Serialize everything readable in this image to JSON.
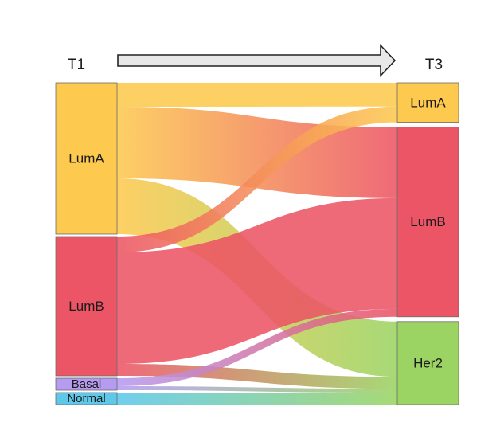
{
  "time_labels": {
    "left": "T1",
    "right": "T3"
  },
  "left_nodes": [
    {
      "id": "lumA",
      "label": "LumA",
      "value": 38,
      "color": "#fdc94f"
    },
    {
      "id": "lumB",
      "label": "LumB",
      "value": 35,
      "color": "#ec5565"
    },
    {
      "id": "basal",
      "label": "Basal",
      "value": 3,
      "color": "#b69cf0"
    },
    {
      "id": "normal",
      "label": "Normal",
      "value": 3,
      "color": "#5ec8ea"
    }
  ],
  "right_nodes": [
    {
      "id": "lumA",
      "label": "LumA",
      "value": 10,
      "color": "#fdc94f"
    },
    {
      "id": "lumB",
      "label": "LumB",
      "value": 48,
      "color": "#ec5565"
    },
    {
      "id": "her2",
      "label": "Her2",
      "value": 21,
      "color": "#9bd463"
    }
  ],
  "flows": [
    {
      "source": "lumA",
      "target": "lumA",
      "value": 6
    },
    {
      "source": "lumA",
      "target": "lumB",
      "value": 18
    },
    {
      "source": "lumA",
      "target": "her2",
      "value": 14
    },
    {
      "source": "lumB",
      "target": "lumA",
      "value": 4
    },
    {
      "source": "lumB",
      "target": "lumB",
      "value": 28
    },
    {
      "source": "lumB",
      "target": "her2",
      "value": 3
    },
    {
      "source": "basal",
      "target": "lumB",
      "value": 2
    },
    {
      "source": "basal",
      "target": "her2",
      "value": 1
    },
    {
      "source": "normal",
      "target": "her2",
      "value": 3
    }
  ]
}
